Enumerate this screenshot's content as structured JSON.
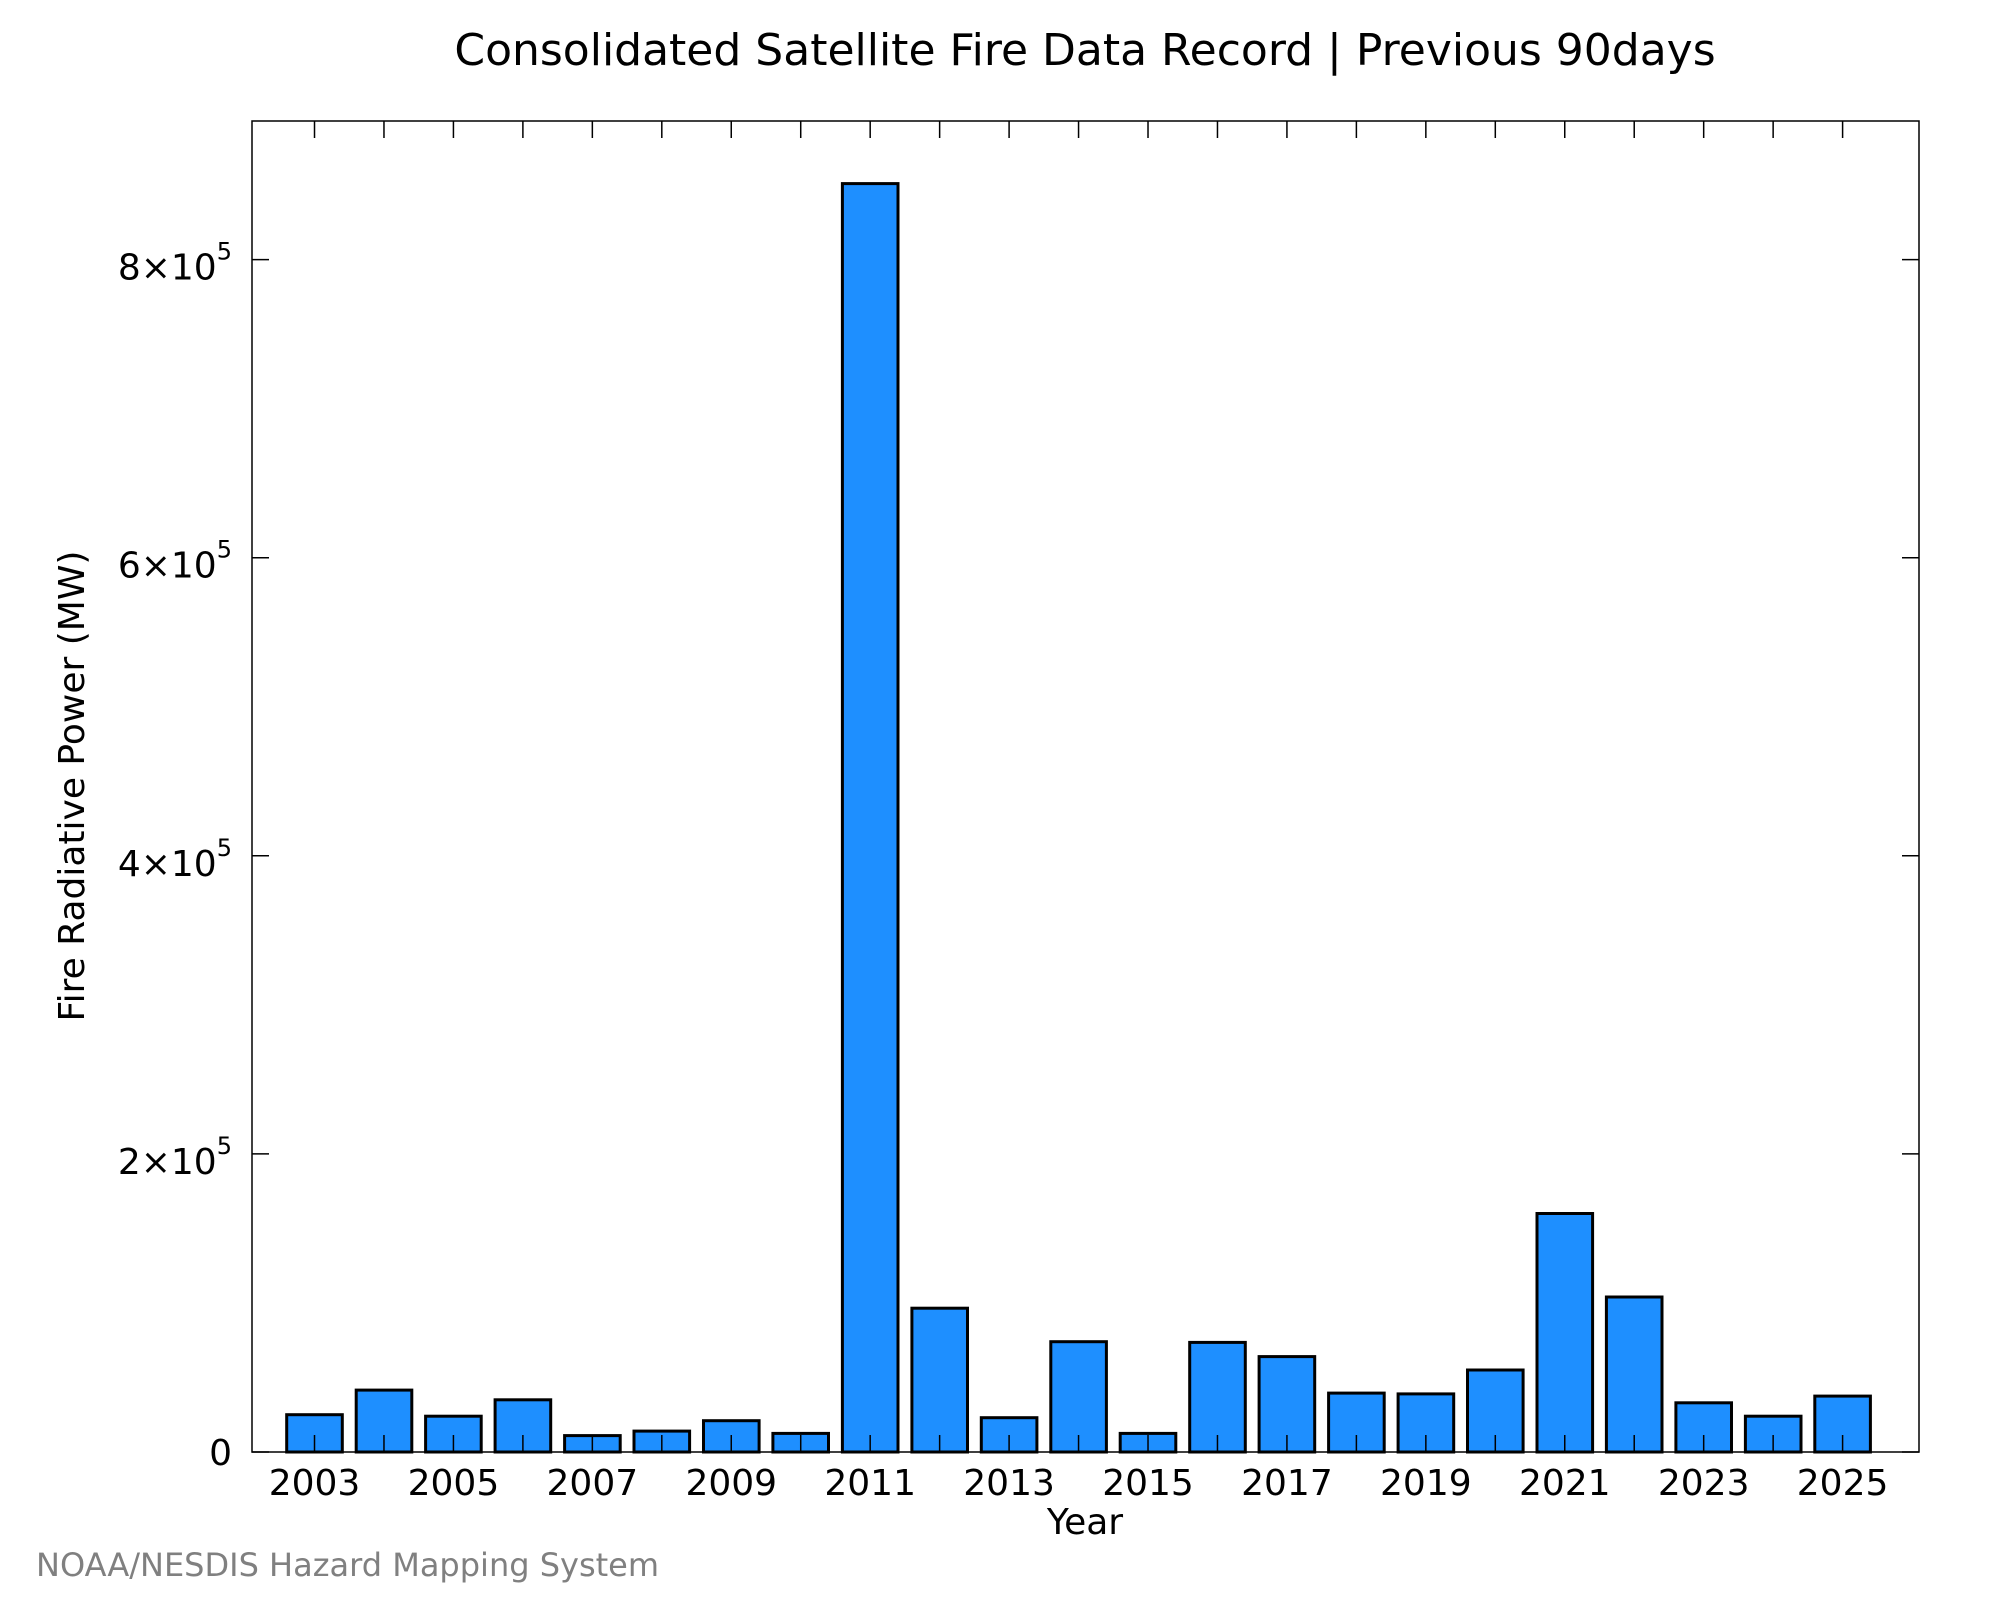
{
  "chart_data": {
    "type": "bar",
    "title": "Consolidated Satellite Fire Data Record | Previous 90days",
    "xlabel": "Year",
    "ylabel": "Fire Radiative Power (MW)",
    "credit": "NOAA/NESDIS Hazard Mapping System",
    "categories": [
      "2003",
      "2004",
      "2005",
      "2006",
      "2007",
      "2008",
      "2009",
      "2010",
      "2011",
      "2012",
      "2013",
      "2014",
      "2015",
      "2016",
      "2017",
      "2018",
      "2019",
      "2020",
      "2021",
      "2022",
      "2023",
      "2024",
      "2025"
    ],
    "values": [
      25000,
      41500,
      24000,
      35000,
      11000,
      14000,
      21000,
      12500,
      851000,
      96500,
      23000,
      74000,
      12500,
      73500,
      64000,
      39500,
      39000,
      55000,
      160000,
      104000,
      33000,
      24000,
      37500
    ],
    "x_tick_labels": [
      "2003",
      "2005",
      "2007",
      "2009",
      "2011",
      "2013",
      "2015",
      "2017",
      "2019",
      "2021",
      "2023",
      "2025"
    ],
    "y_ticks": [
      {
        "value": 0,
        "label": "0"
      },
      {
        "value": 200000,
        "mantissa": "2×10",
        "exp": "5"
      },
      {
        "value": 400000,
        "mantissa": "4×10",
        "exp": "5"
      },
      {
        "value": 600000,
        "mantissa": "6×10",
        "exp": "5"
      },
      {
        "value": 800000,
        "mantissa": "8×10",
        "exp": "5"
      }
    ],
    "ylim": [
      0,
      893000
    ],
    "xlim": [
      2002.1,
      2026.1
    ],
    "grid": false,
    "bar_color": "#1e8fff",
    "bar_edge_color": "#000000"
  }
}
